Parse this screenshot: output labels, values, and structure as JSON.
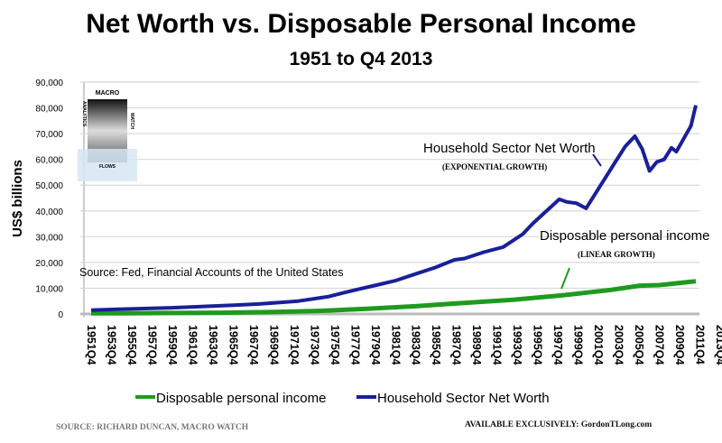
{
  "chart_data": {
    "type": "line",
    "title": "Net Worth vs. Disposable Personal Income",
    "subtitle": "1951 to Q4 2013",
    "xlabel": "",
    "ylabel": "US$ billions",
    "ylim": [
      0,
      90000
    ],
    "y_ticks": [
      "0",
      "10,000",
      "20,000",
      "30,000",
      "40,000",
      "50,000",
      "60,000",
      "70,000",
      "80,000",
      "90,000"
    ],
    "x_range": [
      1951.75,
      2013.75
    ],
    "x_ticks": [
      "1951Q4",
      "1953Q4",
      "1955Q4",
      "1957Q4",
      "1959Q4",
      "1961Q4",
      "1963Q4",
      "1965Q4",
      "1967Q4",
      "1969Q4",
      "1971Q4",
      "1973Q4",
      "1975Q4",
      "1977Q4",
      "1979Q4",
      "1981Q4",
      "1983Q4",
      "1985Q4",
      "1987Q4",
      "1989Q4",
      "1991Q4",
      "1993Q4",
      "1995Q4",
      "1997Q4",
      "1999Q4",
      "2001Q4",
      "2003Q4",
      "2005Q4",
      "2007Q4",
      "2009Q4",
      "2011Q4",
      "2013Q4"
    ],
    "grid": true,
    "legend_position": "bottom",
    "series": [
      {
        "name": "Disposable personal income",
        "color": "#1e9a1e",
        "points": [
          [
            1951.75,
            240
          ],
          [
            1955,
            290
          ],
          [
            1960,
            370
          ],
          [
            1965,
            500
          ],
          [
            1970,
            720
          ],
          [
            1975,
            1200
          ],
          [
            1980,
            2000
          ],
          [
            1985,
            3000
          ],
          [
            1990,
            4300
          ],
          [
            1995,
            5500
          ],
          [
            2000,
            7200
          ],
          [
            2005,
            9300
          ],
          [
            2008,
            11000
          ],
          [
            2010,
            11200
          ],
          [
            2013.75,
            12700
          ]
        ]
      },
      {
        "name": "Household Sector Net Worth",
        "color": "#1a1f9a",
        "points": [
          [
            1951.75,
            1500
          ],
          [
            1955,
            1900
          ],
          [
            1960,
            2400
          ],
          [
            1965,
            3200
          ],
          [
            1969,
            3900
          ],
          [
            1973,
            5000
          ],
          [
            1976,
            6700
          ],
          [
            1979,
            9500
          ],
          [
            1981,
            11200
          ],
          [
            1983,
            13000
          ],
          [
            1985,
            15500
          ],
          [
            1987,
            18000
          ],
          [
            1989,
            21000
          ],
          [
            1990,
            21500
          ],
          [
            1992,
            24000
          ],
          [
            1994,
            26000
          ],
          [
            1996,
            31000
          ],
          [
            1997,
            35000
          ],
          [
            1998,
            38500
          ],
          [
            1999.75,
            44500
          ],
          [
            2000.5,
            43500
          ],
          [
            2001.5,
            43000
          ],
          [
            2002.5,
            41000
          ],
          [
            2003.5,
            47000
          ],
          [
            2004.5,
            53000
          ],
          [
            2005.5,
            59000
          ],
          [
            2006.5,
            65000
          ],
          [
            2007.5,
            69000
          ],
          [
            2008.25,
            64000
          ],
          [
            2009,
            55500
          ],
          [
            2009.75,
            59000
          ],
          [
            2010.5,
            60000
          ],
          [
            2011.25,
            64500
          ],
          [
            2011.75,
            63000
          ],
          [
            2012.5,
            68000
          ],
          [
            2013.25,
            73000
          ],
          [
            2013.75,
            81000
          ]
        ]
      }
    ],
    "annotations": [
      {
        "text": "Household Sector Net Worth",
        "sub": "(EXPONENTIAL GROWTH)"
      },
      {
        "text": "Disposable personal income",
        "sub": "(LINEAR GROWTH)"
      },
      {
        "text": "Source: Fed, Financial Accounts of the United States"
      }
    ]
  },
  "logo": {
    "top": "MACRO",
    "left": "ANALYTICS",
    "right": "WATCH",
    "bottom": "FLOWS"
  },
  "footer": {
    "source": "SOURCE: RICHARD DUNCAN, MACRO WATCH",
    "credit": "AVAILABLE EXCLUSIVELY: GordonTLong.com"
  }
}
